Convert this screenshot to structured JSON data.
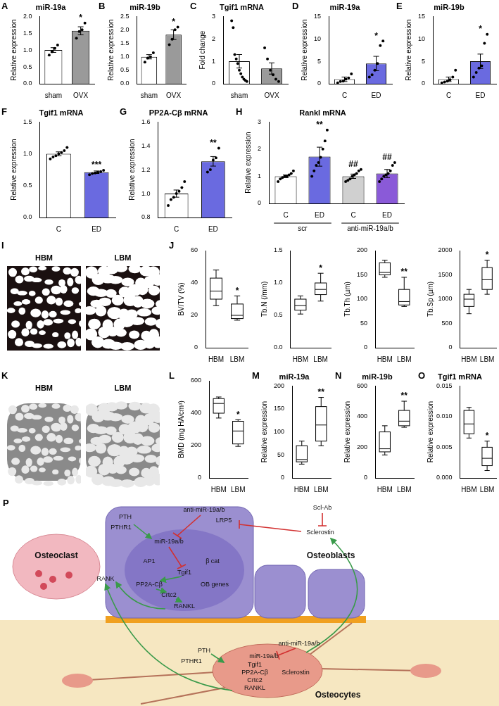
{
  "chart_data": [
    {
      "panel": "A",
      "type": "bar",
      "title": "miR-19a",
      "ylabel": "Relative expression",
      "categories": [
        "sham",
        "OVX"
      ],
      "values": [
        1.0,
        1.57
      ],
      "errors": [
        0.07,
        0.12
      ],
      "points": [
        [
          0.85,
          0.95,
          1.05,
          1.15
        ],
        [
          1.35,
          1.55,
          1.6,
          1.8
        ]
      ],
      "colors": [
        "#ffffff",
        "#9a9a9a"
      ],
      "ylim": [
        0,
        2
      ],
      "yticks": [
        {
          "value": 0,
          "label": "0.0"
        },
        0.5,
        {
          "value": 1,
          "label": "1.0"
        },
        1.5,
        {
          "value": 2,
          "label": "2.0"
        }
      ],
      "grid": false,
      "annotations": [
        {
          "index": 1,
          "text": "*"
        }
      ]
    },
    {
      "panel": "B",
      "type": "bar",
      "title": "miR-19b",
      "ylabel": "Relative expression",
      "categories": [
        "sham",
        "OVX"
      ],
      "values": [
        1.0,
        1.82
      ],
      "errors": [
        0.08,
        0.18
      ],
      "points": [
        [
          0.8,
          0.95,
          1.0,
          1.15
        ],
        [
          1.45,
          1.65,
          2.0,
          2.1
        ]
      ],
      "colors": [
        "#ffffff",
        "#9a9a9a"
      ],
      "ylim": [
        0,
        2.5
      ],
      "yticks": [
        {
          "value": 0,
          "label": "0.0"
        },
        0.5,
        {
          "value": 1,
          "label": "1.0"
        },
        1.5,
        {
          "value": 2,
          "label": "2.0"
        },
        2.5
      ],
      "grid": false,
      "annotations": [
        {
          "index": 1,
          "text": "*"
        }
      ]
    },
    {
      "panel": "C",
      "type": "bar",
      "title": "Tgif1 mRNA",
      "ylabel": "Fold change",
      "categories": [
        "sham",
        "OVX"
      ],
      "values": [
        1.0,
        0.68
      ],
      "errors": [
        0.3,
        0.25
      ],
      "points": [
        [
          2.8,
          2.5,
          1.3,
          1.1,
          0.9,
          0.6,
          0.45,
          0.3,
          0.2,
          0.15,
          0.1
        ],
        [
          1.6,
          1.1,
          0.6,
          0.4,
          0.2,
          0.1
        ]
      ],
      "colors": [
        "#ffffff",
        "#9a9a9a"
      ],
      "ylim": [
        0,
        3
      ],
      "yticks": [
        0,
        1,
        2,
        3
      ],
      "grid": false
    },
    {
      "panel": "D",
      "type": "bar",
      "title": "miR-19a",
      "ylabel": "Relative expression",
      "categories": [
        "C",
        "ED"
      ],
      "values": [
        1.0,
        4.5
      ],
      "errors": [
        0.5,
        1.6
      ],
      "points": [
        [
          0.2,
          0.5,
          0.6,
          1.0,
          1.3,
          2.2
        ],
        [
          1.5,
          2.0,
          3.0,
          4.5,
          8.5,
          9.5
        ]
      ],
      "colors": [
        "#ffffff",
        "#6a6ae0"
      ],
      "ylim": [
        0,
        15
      ],
      "yticks": [
        0,
        5,
        10,
        15
      ],
      "grid": false,
      "annotations": [
        {
          "index": 1,
          "text": "*"
        }
      ]
    },
    {
      "panel": "E",
      "type": "bar",
      "title": "miR-19b",
      "ylabel": "Relative expression",
      "categories": [
        "C",
        "ED"
      ],
      "values": [
        1.0,
        5.0
      ],
      "errors": [
        0.5,
        1.6
      ],
      "points": [
        [
          0.2,
          0.4,
          0.6,
          0.9,
          1.5,
          3.0
        ],
        [
          1.5,
          2.5,
          3.5,
          4.0,
          9.0,
          11.0
        ]
      ],
      "colors": [
        "#ffffff",
        "#6a6ae0"
      ],
      "ylim": [
        0,
        15
      ],
      "yticks": [
        0,
        5,
        10,
        15
      ],
      "grid": false,
      "annotations": [
        {
          "index": 1,
          "text": "*"
        }
      ]
    },
    {
      "panel": "F",
      "type": "bar",
      "title": "Tgif1 mRNA",
      "ylabel": "Relative expression",
      "categories": [
        "C",
        "ED"
      ],
      "values": [
        1.0,
        0.71
      ],
      "errors": [
        0.03,
        0.02
      ],
      "points": [
        [
          0.92,
          0.95,
          0.97,
          1.0,
          1.02,
          1.05,
          1.1
        ],
        [
          0.67,
          0.69,
          0.7,
          0.71,
          0.72,
          0.74
        ]
      ],
      "colors": [
        "#ffffff",
        "#6a6ae0"
      ],
      "ylim": [
        0,
        1.5
      ],
      "yticks": [
        {
          "value": 0,
          "label": "0.0"
        },
        0.5,
        {
          "value": 1,
          "label": "1.0"
        },
        1.5
      ],
      "grid": false,
      "annotations": [
        {
          "index": 1,
          "text": "***"
        }
      ]
    },
    {
      "panel": "G",
      "type": "bar",
      "title": "PP2A-Cβ mRNA",
      "ylabel": "Relative expression",
      "categories": [
        "C",
        "ED"
      ],
      "values": [
        1.0,
        1.27
      ],
      "errors": [
        0.03,
        0.04
      ],
      "points": [
        [
          0.9,
          0.95,
          0.97,
          1.0,
          1.02,
          1.05,
          1.1
        ],
        [
          1.18,
          1.2,
          1.28,
          1.3,
          1.38
        ]
      ],
      "colors": [
        "#ffffff",
        "#6a6ae0"
      ],
      "ylim": [
        0.8,
        1.6
      ],
      "yticks": [
        0.8,
        {
          "value": 1,
          "label": "1.0"
        },
        1.2,
        1.4,
        1.6
      ],
      "grid": false,
      "annotations": [
        {
          "index": 1,
          "text": "**"
        }
      ]
    },
    {
      "panel": "H",
      "type": "bar",
      "title": "Rankl mRNA",
      "ylabel": "Relative expression",
      "categories": [
        "C",
        "ED",
        "C",
        "ED"
      ],
      "groups": [
        "scr",
        "anti-miR-19a/b"
      ],
      "values": [
        1.0,
        1.72,
        1.0,
        1.1
      ],
      "errors": [
        0.05,
        0.35,
        0.08,
        0.15
      ],
      "points": [
        [
          0.8,
          0.9,
          0.95,
          1.0,
          1.0,
          1.05,
          1.1,
          1.2
        ],
        [
          1.0,
          1.2,
          1.4,
          1.5,
          1.7,
          2.0,
          2.3,
          2.7
        ],
        [
          0.8,
          0.85,
          0.9,
          1.0,
          1.05,
          1.1,
          1.2,
          1.25
        ],
        [
          0.8,
          0.9,
          1.0,
          1.05,
          1.1,
          1.2,
          1.4,
          1.5
        ]
      ],
      "colors": [
        "#ffffff",
        "#6a6ae0",
        "#d0d0d0",
        "#8a5ad8"
      ],
      "ylim": [
        0,
        3
      ],
      "yticks": [
        0,
        1,
        2,
        3
      ],
      "grid": false,
      "annotations": [
        {
          "index": 1,
          "text": "**"
        },
        {
          "index": 2,
          "text": "##"
        },
        {
          "index": 3,
          "text": "##"
        }
      ]
    },
    {
      "panel": "J",
      "type": "box",
      "ylabel": "BV/TV (%)",
      "categories": [
        "HBM",
        "LBM"
      ],
      "boxes": [
        {
          "min": 26,
          "q1": 30,
          "median": 35,
          "q3": 43,
          "max": 48
        },
        {
          "min": 17,
          "q1": 18,
          "median": 20,
          "q3": 27,
          "max": 32
        }
      ],
      "color": "#ffffff",
      "ylim": [
        0,
        60
      ],
      "yticks": [
        0,
        20,
        40,
        60
      ],
      "grid": false,
      "annotations": [
        {
          "index": 1,
          "text": "*"
        }
      ]
    },
    {
      "type": "box",
      "ylabel": "Tb.N (/mm)",
      "categories": [
        "HBM",
        "LBM"
      ],
      "boxes": [
        {
          "min": 0.52,
          "q1": 0.58,
          "median": 0.65,
          "q3": 0.75,
          "max": 0.8
        },
        {
          "min": 0.72,
          "q1": 0.82,
          "median": 0.9,
          "q3": 1.0,
          "max": 1.15
        }
      ],
      "color": "#ffffff",
      "ylim": [
        0,
        1.5
      ],
      "yticks": [
        {
          "value": 0,
          "label": "0.0"
        },
        0.5,
        {
          "value": 1,
          "label": "1.0"
        },
        1.5
      ],
      "grid": false,
      "annotations": [
        {
          "index": 1,
          "text": "*"
        }
      ]
    },
    {
      "type": "box",
      "ylabel": "Tb.Th (µm)",
      "categories": [
        "HBM",
        "LBM"
      ],
      "boxes": [
        {
          "min": 145,
          "q1": 150,
          "median": 155,
          "q3": 175,
          "max": 180
        },
        {
          "min": 85,
          "q1": 88,
          "median": 95,
          "q3": 120,
          "max": 145
        }
      ],
      "color": "#ffffff",
      "ylim": [
        0,
        200
      ],
      "yticks": [
        0,
        50,
        100,
        150,
        200
      ],
      "grid": false,
      "annotations": [
        {
          "index": 1,
          "text": "**"
        }
      ]
    },
    {
      "type": "box",
      "ylabel": "Tb.Sp (µm)",
      "categories": [
        "HBM",
        "LBM"
      ],
      "boxes": [
        {
          "min": 700,
          "q1": 850,
          "median": 1000,
          "q3": 1100,
          "max": 1200
        },
        {
          "min": 1100,
          "q1": 1200,
          "median": 1400,
          "q3": 1650,
          "max": 1800
        }
      ],
      "color": "#ffffff",
      "ylim": [
        0,
        2000
      ],
      "yticks": [
        0,
        500,
        1000,
        1500,
        2000
      ],
      "grid": false,
      "annotations": [
        {
          "index": 1,
          "text": "*"
        }
      ]
    },
    {
      "panel": "L",
      "type": "box",
      "ylabel": "BMD (mg HA/cm³)",
      "categories": [
        "HBM",
        "LBM"
      ],
      "boxes": [
        {
          "min": 370,
          "q1": 400,
          "median": 460,
          "q3": 490,
          "max": 500
        },
        {
          "min": 195,
          "q1": 210,
          "median": 290,
          "q3": 350,
          "max": 360
        }
      ],
      "color": "#ffffff",
      "ylim": [
        0,
        600
      ],
      "yticks": [
        0,
        200,
        400,
        600
      ],
      "grid": false,
      "annotations": [
        {
          "index": 1,
          "text": "*"
        }
      ]
    },
    {
      "panel": "M",
      "type": "box",
      "title": "miR-19a",
      "ylabel": "Relative expression",
      "categories": [
        "HBM",
        "LBM"
      ],
      "boxes": [
        {
          "min": 30,
          "q1": 35,
          "median": 40,
          "q3": 70,
          "max": 80
        },
        {
          "min": 70,
          "q1": 80,
          "median": 115,
          "q3": 155,
          "max": 175
        }
      ],
      "color": "#ffffff",
      "ylim": [
        0,
        200
      ],
      "yticks": [
        0,
        50,
        100,
        150,
        200
      ],
      "grid": false,
      "annotations": [
        {
          "index": 1,
          "text": "**"
        }
      ]
    },
    {
      "panel": "N",
      "type": "box",
      "title": "miR-19b",
      "ylabel": "Relative expression",
      "categories": [
        "HBM",
        "LBM"
      ],
      "boxes": [
        {
          "min": 150,
          "q1": 170,
          "median": 190,
          "q3": 300,
          "max": 340
        },
        {
          "min": 330,
          "q1": 340,
          "median": 370,
          "q3": 440,
          "max": 500
        }
      ],
      "color": "#ffffff",
      "ylim": [
        0,
        600
      ],
      "yticks": [
        0,
        200,
        400,
        600
      ],
      "grid": false,
      "annotations": [
        {
          "index": 1,
          "text": "**"
        }
      ]
    },
    {
      "panel": "O",
      "type": "box",
      "title": "Tgif1 mRNA",
      "ylabel": "Relative expression",
      "categories": [
        "HBM",
        "LBM"
      ],
      "boxes": [
        {
          "min": 0.0065,
          "q1": 0.0072,
          "median": 0.0088,
          "q3": 0.011,
          "max": 0.0115
        },
        {
          "min": 0.0012,
          "q1": 0.002,
          "median": 0.0032,
          "q3": 0.005,
          "max": 0.006
        }
      ],
      "color": "#ffffff",
      "ylim": [
        0,
        0.015
      ],
      "yticks": [
        {
          "value": 0,
          "label": "0.000"
        },
        0.005,
        {
          "value": 0.01,
          "label": "0.010"
        },
        0.015
      ],
      "grid": false,
      "annotations": [
        {
          "index": 1,
          "text": "*"
        }
      ]
    }
  ],
  "images": [
    {
      "panel": "I",
      "labels": [
        "HBM",
        "LBM"
      ]
    },
    {
      "panel": "K",
      "labels": [
        "HBM",
        "LBM"
      ]
    }
  ],
  "diagram": {
    "panel": "P",
    "labels": [
      "PTH",
      "PTHR1",
      "anti-miR-19a/b",
      "LRP5",
      "Scl-Ab",
      "Sclerostin",
      "miR-19a/b",
      "AP1",
      "β cat",
      "Tgif1",
      "PP2A-Cβ",
      "OB genes",
      "Crtc2",
      "RANKL",
      "Osteoclast",
      "RANK",
      "Osteoblasts",
      "PTH",
      "PTHR1",
      "anti-miR-19a/b",
      "miR-19a/b",
      "Tgif1",
      "PP2A-Cβ",
      "Crtc2",
      "Sclerostin",
      "RANKL",
      "Osteocytes"
    ]
  }
}
